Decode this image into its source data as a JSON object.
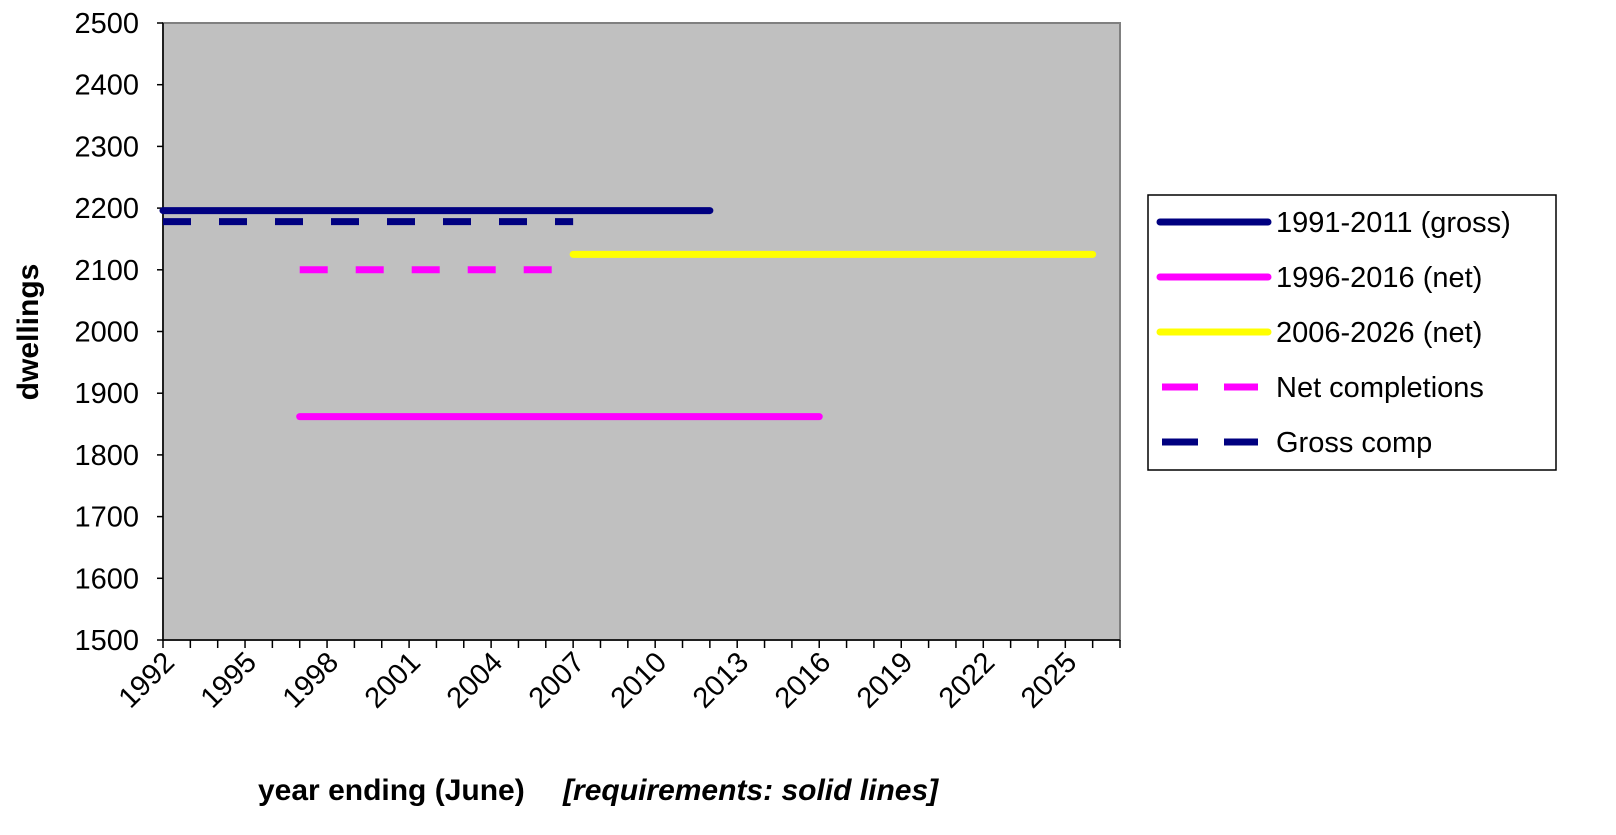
{
  "chart_data": {
    "type": "line",
    "ylabel": "dwellings",
    "xlabel_main": "year ending (June)",
    "xlabel_note": "[requirements: solid lines]",
    "ylim": [
      1500,
      2500
    ],
    "xlim": [
      1992,
      2027
    ],
    "y_ticks": [
      1500,
      1600,
      1700,
      1800,
      1900,
      2000,
      2100,
      2200,
      2300,
      2400,
      2500
    ],
    "x_tick_labels": [
      1992,
      1995,
      1998,
      2001,
      2004,
      2007,
      2010,
      2013,
      2016,
      2019,
      2022,
      2025
    ],
    "plot_background": "#c0c0c0",
    "grid": false,
    "legend_position": "right",
    "series": [
      {
        "name": "1991-2011 (gross)",
        "color": "#000080",
        "style": "solid",
        "x": [
          1992,
          2012
        ],
        "y": [
          2196,
          2196
        ]
      },
      {
        "name": "1996-2016 (net)",
        "color": "#ff00ff",
        "style": "solid",
        "x": [
          1997,
          2016
        ],
        "y": [
          1862,
          1862
        ]
      },
      {
        "name": "2006-2026 (net)",
        "color": "#ffff00",
        "style": "solid",
        "x": [
          2007,
          2026
        ],
        "y": [
          2125,
          2125
        ]
      },
      {
        "name": "Net completions",
        "color": "#ff00ff",
        "style": "dashed",
        "x": [
          1997,
          2007
        ],
        "y": [
          2100,
          2100
        ]
      },
      {
        "name": "Gross comp",
        "color": "#000080",
        "style": "dashed",
        "x": [
          1992,
          2007
        ],
        "y": [
          2178,
          2178
        ]
      }
    ]
  }
}
